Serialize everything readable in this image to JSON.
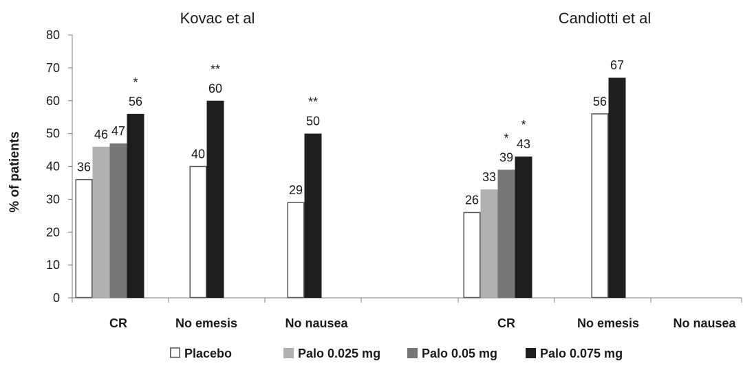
{
  "chart_data": {
    "type": "bar",
    "ylabel": "% of patients",
    "ylim": [
      0,
      80
    ],
    "yticks": [
      0,
      10,
      20,
      30,
      40,
      50,
      60,
      70,
      80
    ],
    "grid": false,
    "legend_position": "bottom",
    "series": [
      {
        "name": "Placebo",
        "color": "#ffffff",
        "stroke": "#555555"
      },
      {
        "name": "Palo 0.025 mg",
        "color": "#b1b1b1",
        "stroke": "#b1b1b1"
      },
      {
        "name": "Palo 0.05 mg",
        "color": "#767676",
        "stroke": "#767676"
      },
      {
        "name": "Palo 0.075 mg",
        "color": "#1e1e1e",
        "stroke": "#1e1e1e"
      }
    ],
    "groups": [
      {
        "title": "Kovac et al",
        "categories": [
          {
            "label": "CR",
            "bars": [
              {
                "series": 0,
                "value": 36,
                "label": "36",
                "sig": ""
              },
              {
                "series": 1,
                "value": 46,
                "label": "46",
                "sig": ""
              },
              {
                "series": 2,
                "value": 47,
                "label": "47",
                "sig": ""
              },
              {
                "series": 3,
                "value": 56,
                "label": "56",
                "sig": "*"
              }
            ]
          },
          {
            "label": "No emesis",
            "bars": [
              {
                "series": 0,
                "value": 40,
                "label": "40",
                "sig": ""
              },
              {
                "series": 3,
                "value": 60,
                "label": "60",
                "sig": "**"
              }
            ]
          },
          {
            "label": "No nausea",
            "bars": [
              {
                "series": 0,
                "value": 29,
                "label": "29",
                "sig": ""
              },
              {
                "series": 3,
                "value": 50,
                "label": "50",
                "sig": "**"
              }
            ]
          }
        ]
      },
      {
        "title": "Candiotti et al",
        "categories": [
          {
            "label": "CR",
            "bars": [
              {
                "series": 0,
                "value": 26,
                "label": "26",
                "sig": ""
              },
              {
                "series": 1,
                "value": 33,
                "label": "33",
                "sig": ""
              },
              {
                "series": 2,
                "value": 39,
                "label": "39",
                "sig": "*"
              },
              {
                "series": 3,
                "value": 43,
                "label": "43",
                "sig": "*"
              }
            ]
          },
          {
            "label": "No emesis",
            "bars": [
              {
                "series": 0,
                "value": 56,
                "label": "56",
                "sig": ""
              },
              {
                "series": 3,
                "value": 67,
                "label": "67",
                "sig": ""
              }
            ]
          },
          {
            "label": "No nausea",
            "bars": []
          }
        ]
      }
    ]
  }
}
